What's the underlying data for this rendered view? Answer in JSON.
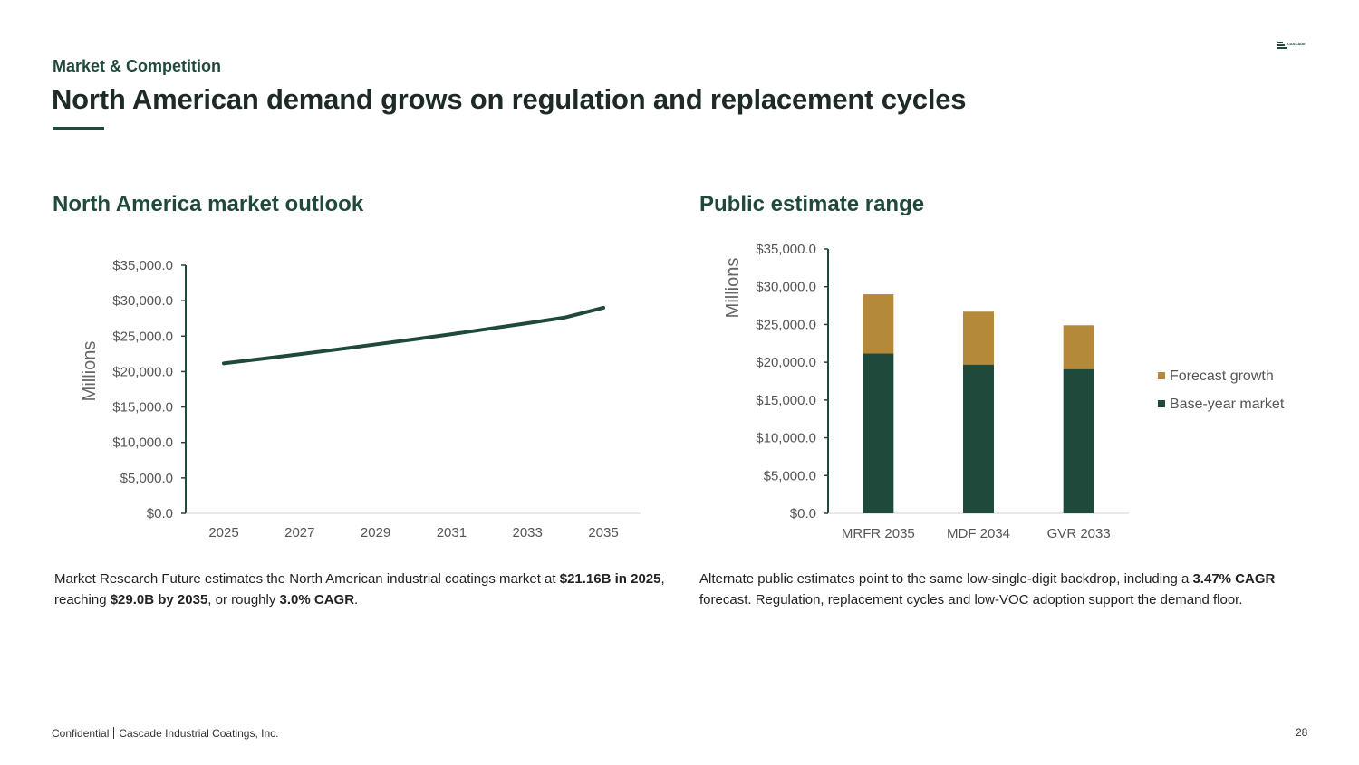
{
  "header": {
    "kicker": "Market & Competition",
    "title": "North American demand grows on regulation and replacement cycles"
  },
  "left": {
    "heading": "North America market outlook",
    "paragraph": [
      {
        "text": "Market Research Future estimates the North American industrial coatings market at ",
        "bold": false
      },
      {
        "text": "$21.16B in 2025",
        "bold": true
      },
      {
        "text": ", reaching ",
        "bold": false
      },
      {
        "text": "$29.0B by 2035",
        "bold": true
      },
      {
        "text": ", or roughly ",
        "bold": false
      },
      {
        "text": "3.0% CAGR",
        "bold": true
      },
      {
        "text": ".",
        "bold": false
      }
    ]
  },
  "right": {
    "heading": "Public estimate range",
    "paragraph": [
      {
        "text": "Alternate public estimates point to the same low-single-digit backdrop, including a ",
        "bold": false
      },
      {
        "text": "3.47% CAGR",
        "bold": true
      },
      {
        "text": " forecast. Regulation, replacement cycles and low-VOC adoption support the demand floor.",
        "bold": false
      }
    ]
  },
  "chart_data": [
    {
      "type": "line",
      "title": "",
      "ylabel": "Millions",
      "xlabel": "",
      "x": [
        2025,
        2026,
        2027,
        2028,
        2029,
        2030,
        2031,
        2032,
        2033,
        2034,
        2035
      ],
      "x_tick_labels": [
        "2025",
        "2027",
        "2029",
        "2031",
        "2033",
        "2035"
      ],
      "y_tick_labels": [
        "$0.0",
        "$5,000.0",
        "$10,000.0",
        "$15,000.0",
        "$20,000.0",
        "$25,000.0",
        "$30,000.0",
        "$35,000.0"
      ],
      "ylim": [
        0,
        35000
      ],
      "series": [
        {
          "values": [
            21160,
            21800,
            22450,
            23130,
            23830,
            24540,
            25280,
            26050,
            26830,
            27640,
            29000
          ],
          "color": "#1f4a3b"
        }
      ],
      "grid": false
    },
    {
      "type": "bar",
      "stacked": true,
      "title": "",
      "ylabel": "Millions",
      "categories": [
        "MRFR 2035",
        "MDF 2034",
        "GVR 2033"
      ],
      "y_tick_labels": [
        "$0.0",
        "$5,000.0",
        "$10,000.0",
        "$15,000.0",
        "$20,000.0",
        "$25,000.0",
        "$30,000.0",
        "$35,000.0"
      ],
      "ylim": [
        0,
        35000
      ],
      "series": [
        {
          "name": "Base-year market",
          "values": [
            21160,
            19700,
            19100
          ],
          "color": "#1f4a3b"
        },
        {
          "name": "Forecast growth",
          "values": [
            7840,
            7000,
            5800
          ],
          "color": "#b5893a"
        }
      ],
      "legend_labels": [
        "Forecast growth",
        "Base-year market"
      ],
      "legend_placement": "right",
      "grid": false
    }
  ],
  "footer": {
    "left": "Confidential",
    "company": "Cascade Industrial Coatings, Inc.",
    "page": "28"
  },
  "logo": {
    "text": "CASCADE"
  }
}
